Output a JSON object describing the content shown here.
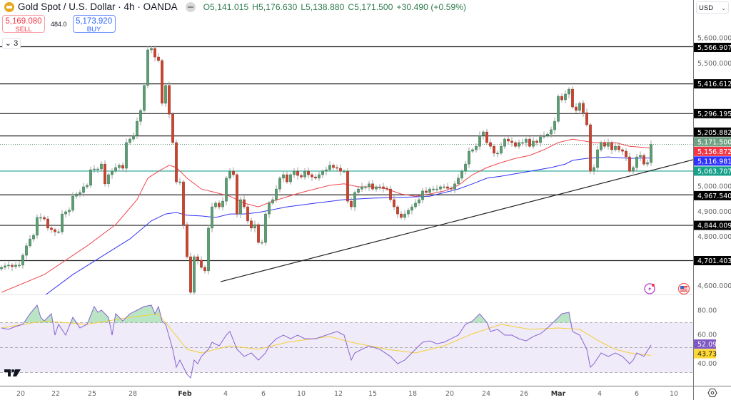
{
  "header": {
    "symbol_title": "Gold Spot / U.S. Dollar · 4h · OANDA",
    "open": "O5,141.015",
    "high": "H5,176.630",
    "low": "L5,138.880",
    "close": "C5,171.500",
    "change": "+30.490 (+0.59%)"
  },
  "trade": {
    "sell_price": "5,169.080",
    "sell_label": "SELL",
    "spread": "484.0",
    "buy_price": "5,173.920",
    "buy_label": "BUY"
  },
  "indicators_collapse_label": "3",
  "currency_selector": "USD",
  "colors": {
    "up": "#5c9c72",
    "down": "#c9432f",
    "ma_fast": "#f0474f",
    "ma_slow": "#3333f5",
    "support": "#17a08a",
    "rsi": "#8a63d2",
    "rsi_ma": "#f5cf3a",
    "rsi_band": "#efebf8"
  },
  "icons": [
    "tradingview-logo-icon",
    "lightning-alert-icon",
    "us-flag-icon",
    "settings-gear-icon",
    "chevron-down-icon"
  ],
  "chart_data": {
    "type": "candlestick",
    "timeframe": "4h",
    "price_ylim": [
      4560,
      5760
    ],
    "price_ticks": [
      "5,600.000",
      "5,500.000",
      "5,000.000",
      "4,900.000",
      "4,800.000",
      "4,600.000"
    ],
    "x_tick_labels": [
      "20",
      "22",
      "25",
      "28",
      "Feb",
      "4",
      "6",
      "10",
      "12",
      "15",
      "18",
      "20",
      "24",
      "26",
      "Mar",
      "4",
      "6",
      "10"
    ],
    "closes": [
      4674,
      4680,
      4683,
      4677,
      4683,
      4683,
      4723,
      4761,
      4789,
      4804,
      4876,
      4876,
      4870,
      4833,
      4827,
      4818,
      4818,
      4890,
      4899,
      4905,
      4962,
      4971,
      4977,
      5000,
      5006,
      5069,
      5072,
      5072,
      5092,
      5012,
      5049,
      5063,
      5078,
      5087,
      5075,
      5179,
      5193,
      5208,
      5265,
      5309,
      5410,
      5554,
      5560,
      5525,
      5511,
      5338,
      5410,
      5294,
      5179,
      5020,
      5020,
      4847,
      4717,
      4573,
      4717,
      4703,
      4674,
      4660,
      4833,
      4919,
      4934,
      4919,
      4942,
      5035,
      5063,
      5049,
      4890,
      4948,
      4919,
      4862,
      4833,
      4847,
      4775,
      4775,
      4890,
      4934,
      4948,
      4991,
      5035,
      5049,
      5020,
      5049,
      5063,
      5046,
      5040,
      5063,
      5049,
      5040,
      5035,
      5049,
      5063,
      5069,
      5087,
      5078,
      5075,
      5063,
      5063,
      4942,
      4919,
      4977,
      4991,
      5000,
      5000,
      5012,
      4991,
      5000,
      5000,
      4994,
      4991,
      4948,
      4919,
      4890,
      4876,
      4890,
      4905,
      4919,
      4934,
      4948,
      4983,
      4977,
      4991,
      4991,
      4991,
      5000,
      5000,
      4994,
      4991,
      5012,
      5035,
      5063,
      5092,
      5144,
      5150,
      5164,
      5208,
      5222,
      5179,
      5164,
      5136,
      5136,
      5164,
      5193,
      5185,
      5179,
      5164,
      5179,
      5179,
      5193,
      5164,
      5185,
      5179,
      5202,
      5208,
      5213,
      5231,
      5265,
      5366,
      5352,
      5375,
      5395,
      5323,
      5309,
      5338,
      5300,
      5251,
      5063,
      5078,
      5150,
      5179,
      5164,
      5179,
      5150,
      5164,
      5150,
      5144,
      5121,
      5063,
      5078,
      5121,
      5127,
      5092,
      5098,
      5171.5
    ],
    "ma_fast": [
      [
        0,
        4573
      ],
      [
        12,
        4645
      ],
      [
        18,
        4703
      ],
      [
        24,
        4761
      ],
      [
        32,
        4847
      ],
      [
        38,
        4948
      ],
      [
        41,
        5035
      ],
      [
        44,
        5063
      ],
      [
        47,
        5087
      ],
      [
        49,
        5078
      ],
      [
        52,
        5035
      ],
      [
        56,
        4991
      ],
      [
        60,
        4977
      ],
      [
        64,
        4962
      ],
      [
        68,
        4934
      ],
      [
        72,
        4919
      ],
      [
        76,
        4942
      ],
      [
        84,
        4977
      ],
      [
        92,
        5006
      ],
      [
        96,
        5012
      ],
      [
        100,
        5000
      ],
      [
        104,
        5000
      ],
      [
        108,
        4991
      ],
      [
        112,
        4971
      ],
      [
        116,
        4962
      ],
      [
        120,
        4971
      ],
      [
        124,
        4983
      ],
      [
        128,
        5006
      ],
      [
        132,
        5049
      ],
      [
        136,
        5078
      ],
      [
        140,
        5098
      ],
      [
        144,
        5115
      ],
      [
        148,
        5127
      ],
      [
        152,
        5150
      ],
      [
        156,
        5179
      ],
      [
        160,
        5193
      ],
      [
        162,
        5188
      ],
      [
        166,
        5179
      ],
      [
        172,
        5179
      ],
      [
        176,
        5164
      ],
      [
        182,
        5156.872
      ]
    ],
    "ma_slow": [
      [
        12,
        4559
      ],
      [
        20,
        4645
      ],
      [
        28,
        4717
      ],
      [
        36,
        4789
      ],
      [
        42,
        4862
      ],
      [
        46,
        4890
      ],
      [
        49,
        4896
      ],
      [
        52,
        4885
      ],
      [
        56,
        4882
      ],
      [
        60,
        4876
      ],
      [
        64,
        4890
      ],
      [
        68,
        4890
      ],
      [
        72,
        4896
      ],
      [
        80,
        4919
      ],
      [
        88,
        4934
      ],
      [
        96,
        4948
      ],
      [
        104,
        4954
      ],
      [
        112,
        4957
      ],
      [
        120,
        4962
      ],
      [
        128,
        4991
      ],
      [
        132,
        5012
      ],
      [
        136,
        5035
      ],
      [
        140,
        5043
      ],
      [
        148,
        5063
      ],
      [
        154,
        5078
      ],
      [
        158,
        5092
      ],
      [
        160,
        5107
      ],
      [
        164,
        5115
      ],
      [
        170,
        5121
      ],
      [
        176,
        5115
      ],
      [
        182,
        5116.981
      ]
    ],
    "horizontal_levels": [
      {
        "price": 5566.907,
        "label": "5,566.907",
        "style": "solid"
      },
      {
        "price": 5416.612,
        "label": "5,416.612",
        "style": "solid"
      },
      {
        "price": 5296.195,
        "label": "5,296.195",
        "style": "solid"
      },
      {
        "price": 5205.882,
        "label": "5,205.882",
        "style": "solid"
      },
      {
        "price": 4967.54,
        "label": "4,967.540",
        "style": "solid"
      },
      {
        "price": 4844.009,
        "label": "4,844.009",
        "style": "solid"
      },
      {
        "price": 4701.403,
        "label": "4,701.403",
        "style": "solid"
      },
      {
        "price": 5063.707,
        "label": "5,063.707",
        "style": "support"
      }
    ],
    "last_price": {
      "price": 5171.5,
      "label": "5,171.500"
    },
    "ma_fast_label": "5,156.872",
    "ma_slow_label": "5,116.981",
    "trendline": [
      [
        61.4,
        4616
      ],
      [
        194.4,
        5112
      ]
    ],
    "rsi": {
      "ylim": [
        20,
        100
      ],
      "ticks": [
        "80.00",
        "60.00",
        "40.00"
      ],
      "bands": [
        70,
        50,
        30
      ],
      "value_label": "52.09",
      "ma_label": "43.73",
      "line": [
        [
          0,
          65.7
        ],
        [
          2,
          64.6
        ],
        [
          4,
          66.9
        ],
        [
          6,
          68.6
        ],
        [
          8,
          77.1
        ],
        [
          10,
          84
        ],
        [
          11,
          74.3
        ],
        [
          12,
          71.4
        ],
        [
          14,
          77.1
        ],
        [
          15,
          60
        ],
        [
          16,
          68.6
        ],
        [
          18,
          60
        ],
        [
          20,
          74.3
        ],
        [
          22,
          65.7
        ],
        [
          24,
          68.6
        ],
        [
          26,
          82.9
        ],
        [
          27,
          78.3
        ],
        [
          28,
          80
        ],
        [
          30,
          74.3
        ],
        [
          31,
          60
        ],
        [
          32,
          77.1
        ],
        [
          34,
          71.4
        ],
        [
          36,
          77.1
        ],
        [
          38,
          80
        ],
        [
          40,
          82.9
        ],
        [
          42,
          84
        ],
        [
          43,
          77.1
        ],
        [
          44,
          82.9
        ],
        [
          45,
          71.4
        ],
        [
          46,
          68.6
        ],
        [
          48,
          48.6
        ],
        [
          49,
          34.3
        ],
        [
          50,
          40
        ],
        [
          51,
          34.3
        ],
        [
          52,
          28.6
        ],
        [
          53,
          25.7
        ],
        [
          54,
          40
        ],
        [
          55,
          37.1
        ],
        [
          56,
          42.9
        ],
        [
          58,
          48.6
        ],
        [
          59,
          54.3
        ],
        [
          61,
          51.4
        ],
        [
          63,
          60
        ],
        [
          64,
          62.9
        ],
        [
          66,
          48.6
        ],
        [
          68,
          42.9
        ],
        [
          70,
          45.7
        ],
        [
          72,
          40
        ],
        [
          74,
          45.7
        ],
        [
          75,
          51.4
        ],
        [
          77,
          57.1
        ],
        [
          79,
          60
        ],
        [
          81,
          57.1
        ],
        [
          83,
          60
        ],
        [
          85,
          57.1
        ],
        [
          88,
          57.1
        ],
        [
          91,
          60
        ],
        [
          94,
          62.9
        ],
        [
          96,
          60
        ],
        [
          98,
          40
        ],
        [
          99,
          45.7
        ],
        [
          101,
          48.6
        ],
        [
          103,
          51.4
        ],
        [
          106,
          48.6
        ],
        [
          109,
          42.9
        ],
        [
          111,
          37.1
        ],
        [
          113,
          40
        ],
        [
          116,
          48.6
        ],
        [
          118,
          54.3
        ],
        [
          120,
          55.4
        ],
        [
          122,
          53.1
        ],
        [
          124,
          54.3
        ],
        [
          128,
          60
        ],
        [
          130,
          68.6
        ],
        [
          132,
          71.4
        ],
        [
          134,
          77.1
        ],
        [
          136,
          70.3
        ],
        [
          137,
          62.9
        ],
        [
          139,
          64.6
        ],
        [
          141,
          60
        ],
        [
          143,
          60
        ],
        [
          145,
          57.1
        ],
        [
          147,
          55.4
        ],
        [
          149,
          58.9
        ],
        [
          151,
          61.1
        ],
        [
          153,
          65.7
        ],
        [
          155,
          71.4
        ],
        [
          157,
          77.1
        ],
        [
          159,
          78.3
        ],
        [
          160,
          62.9
        ],
        [
          162,
          60
        ],
        [
          164,
          48.6
        ],
        [
          165,
          34.3
        ],
        [
          166,
          37.1
        ],
        [
          168,
          45.7
        ],
        [
          170,
          42.9
        ],
        [
          172,
          45.7
        ],
        [
          174,
          42.9
        ],
        [
          176,
          37.1
        ],
        [
          177,
          40
        ],
        [
          178,
          45.7
        ],
        [
          180,
          42.9
        ],
        [
          182,
          52.09
        ]
      ],
      "ma": [
        [
          0,
          65.7
        ],
        [
          12,
          71.4
        ],
        [
          24,
          68.6
        ],
        [
          36,
          74.3
        ],
        [
          44,
          77.1
        ],
        [
          48,
          62.9
        ],
        [
          52,
          48.6
        ],
        [
          56,
          45.7
        ],
        [
          64,
          51.4
        ],
        [
          72,
          48.6
        ],
        [
          80,
          54.3
        ],
        [
          92,
          58.9
        ],
        [
          98,
          54.3
        ],
        [
          108,
          48.6
        ],
        [
          116,
          45.7
        ],
        [
          124,
          51.4
        ],
        [
          132,
          61.1
        ],
        [
          140,
          68.6
        ],
        [
          148,
          64.6
        ],
        [
          156,
          65.7
        ],
        [
          162,
          64.6
        ],
        [
          168,
          54.3
        ],
        [
          172,
          48.6
        ],
        [
          176,
          45.7
        ],
        [
          182,
          43.73
        ]
      ]
    }
  }
}
